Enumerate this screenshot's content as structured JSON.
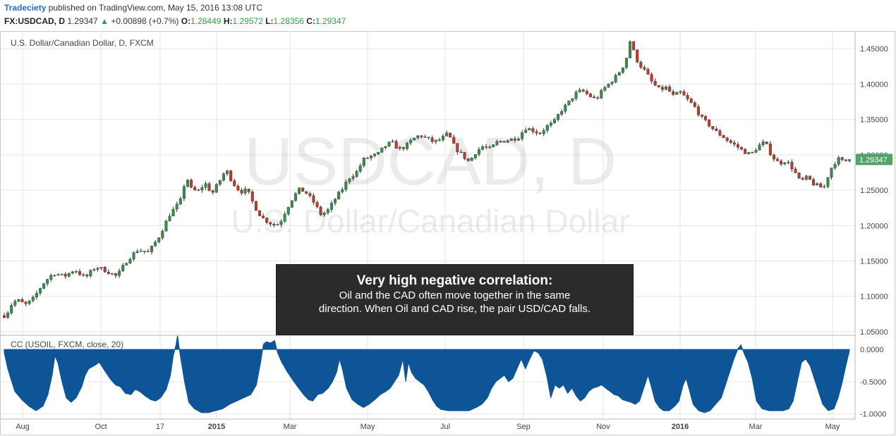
{
  "header": {
    "publisher": "Tradeciety",
    "published_text": "published on TradingView.com, May 15, 2016 13:08 UTC",
    "symbol": "FX:USDCAD, D",
    "last": "1.29347",
    "change_arrow": "▲",
    "change": "+0.00898 (+0.7%)",
    "o_label": "O:",
    "o_value": "1.28449",
    "h_label": "H:",
    "h_value": "1.29572",
    "l_label": "L:",
    "l_value": "1.28356",
    "c_label": "C:",
    "c_value": "1.29347"
  },
  "watermark": {
    "line1": "USDCAD, D",
    "line2": "U.S. Dollar/Canadian Dollar"
  },
  "annotation": {
    "title": "Very high negative correlation:",
    "body_line1": "Oil and the CAD often move together in the same",
    "body_line2": "direction. When Oil and CAD rise, the pair USD/CAD falls."
  },
  "colors": {
    "up": "#3a8e4c",
    "down": "#c0392b",
    "area": "#0e5597",
    "price_tag": "#53a16b",
    "grid": "#e6e6e6"
  },
  "chart_data": [
    {
      "type": "candlestick",
      "title": "U.S. Dollar/Canadian Dollar, D, FXCM",
      "ylim": [
        1.045,
        1.475
      ],
      "y_ticks": [
        "1.45000",
        "1.40000",
        "1.35000",
        "1.30000",
        "1.25000",
        "1.20000",
        "1.15000",
        "1.10000",
        "1.05000"
      ],
      "last_price_label": "1.29347",
      "x_ticks": [
        "Aug",
        "Oct",
        "17",
        "2015",
        "Mar",
        "May",
        "Jul",
        "Sep",
        "Nov",
        "2016",
        "Mar",
        "May"
      ],
      "x_ticks_bold": [
        "2015",
        "2016"
      ],
      "anchors": [
        [
          0,
          1.073
        ],
        [
          5,
          1.078
        ],
        [
          12,
          1.092
        ],
        [
          20,
          1.094
        ],
        [
          30,
          1.088
        ],
        [
          40,
          1.095
        ],
        [
          55,
          1.118
        ],
        [
          70,
          1.133
        ],
        [
          85,
          1.128
        ],
        [
          100,
          1.138
        ],
        [
          115,
          1.126
        ],
        [
          130,
          1.142
        ],
        [
          145,
          1.136
        ],
        [
          160,
          1.128
        ],
        [
          175,
          1.152
        ],
        [
          190,
          1.166
        ],
        [
          205,
          1.162
        ],
        [
          220,
          1.185
        ],
        [
          235,
          1.216
        ],
        [
          245,
          1.228
        ],
        [
          252,
          1.238
        ],
        [
          258,
          1.272
        ],
        [
          265,
          1.252
        ],
        [
          275,
          1.248
        ],
        [
          285,
          1.26
        ],
        [
          295,
          1.245
        ],
        [
          305,
          1.262
        ],
        [
          315,
          1.279
        ],
        [
          325,
          1.26
        ],
        [
          335,
          1.248
        ],
        [
          345,
          1.25
        ],
        [
          355,
          1.228
        ],
        [
          365,
          1.212
        ],
        [
          375,
          1.205
        ],
        [
          385,
          1.2
        ],
        [
          392,
          1.205
        ],
        [
          400,
          1.222
        ],
        [
          410,
          1.24
        ],
        [
          420,
          1.252
        ],
        [
          430,
          1.245
        ],
        [
          440,
          1.232
        ],
        [
          450,
          1.215
        ],
        [
          460,
          1.222
        ],
        [
          470,
          1.238
        ],
        [
          480,
          1.252
        ],
        [
          490,
          1.268
        ],
        [
          500,
          1.275
        ],
        [
          510,
          1.293
        ],
        [
          520,
          1.298
        ],
        [
          530,
          1.3
        ],
        [
          540,
          1.312
        ],
        [
          550,
          1.318
        ],
        [
          560,
          1.308
        ],
        [
          570,
          1.312
        ],
        [
          580,
          1.322
        ],
        [
          590,
          1.328
        ],
        [
          600,
          1.323
        ],
        [
          610,
          1.318
        ],
        [
          620,
          1.322
        ],
        [
          630,
          1.33
        ],
        [
          640,
          1.31
        ],
        [
          650,
          1.3
        ],
        [
          660,
          1.29
        ],
        [
          670,
          1.305
        ],
        [
          680,
          1.312
        ],
        [
          690,
          1.308
        ],
        [
          700,
          1.318
        ],
        [
          710,
          1.32
        ],
        [
          720,
          1.322
        ],
        [
          730,
          1.325
        ],
        [
          740,
          1.338
        ],
        [
          750,
          1.335
        ],
        [
          760,
          1.33
        ],
        [
          770,
          1.34
        ],
        [
          780,
          1.345
        ],
        [
          790,
          1.362
        ],
        [
          800,
          1.372
        ],
        [
          810,
          1.386
        ],
        [
          820,
          1.391
        ],
        [
          830,
          1.384
        ],
        [
          840,
          1.378
        ],
        [
          850,
          1.392
        ],
        [
          860,
          1.402
        ],
        [
          870,
          1.412
        ],
        [
          880,
          1.428
        ],
        [
          885,
          1.442
        ],
        [
          888,
          1.462
        ],
        [
          893,
          1.448
        ],
        [
          900,
          1.43
        ],
        [
          910,
          1.418
        ],
        [
          920,
          1.402
        ],
        [
          930,
          1.392
        ],
        [
          940,
          1.395
        ],
        [
          950,
          1.383
        ],
        [
          960,
          1.388
        ],
        [
          970,
          1.378
        ],
        [
          980,
          1.368
        ],
        [
          990,
          1.352
        ],
        [
          1000,
          1.343
        ],
        [
          1010,
          1.333
        ],
        [
          1020,
          1.326
        ],
        [
          1030,
          1.318
        ],
        [
          1040,
          1.312
        ],
        [
          1050,
          1.305
        ],
        [
          1060,
          1.3
        ],
        [
          1070,
          1.312
        ],
        [
          1080,
          1.318
        ],
        [
          1090,
          1.298
        ],
        [
          1100,
          1.288
        ],
        [
          1110,
          1.292
        ],
        [
          1120,
          1.28
        ],
        [
          1130,
          1.262
        ],
        [
          1140,
          1.268
        ],
        [
          1150,
          1.258
        ],
        [
          1160,
          1.254
        ],
        [
          1165,
          1.255
        ],
        [
          1170,
          1.272
        ],
        [
          1175,
          1.283
        ],
        [
          1180,
          1.29
        ],
        [
          1186,
          1.295
        ],
        [
          1192,
          1.289
        ],
        [
          1197,
          1.2935
        ]
      ]
    },
    {
      "type": "area",
      "title": "CC (USOIL, FXCM, close, 20)",
      "ylim": [
        -1.08,
        0.22
      ],
      "y_ticks": [
        "0.0000",
        "-0.5000",
        "-1.0000"
      ],
      "anchors": [
        [
          0,
          -0.05
        ],
        [
          5,
          -0.3
        ],
        [
          15,
          -0.65
        ],
        [
          25,
          -0.78
        ],
        [
          35,
          -0.88
        ],
        [
          45,
          -0.95
        ],
        [
          55,
          -0.88
        ],
        [
          62,
          -0.7
        ],
        [
          68,
          -0.4
        ],
        [
          72,
          -0.1
        ],
        [
          76,
          -0.2
        ],
        [
          82,
          -0.5
        ],
        [
          88,
          -0.75
        ],
        [
          95,
          -0.82
        ],
        [
          102,
          -0.75
        ],
        [
          110,
          -0.58
        ],
        [
          115,
          -0.4
        ],
        [
          120,
          -0.3
        ],
        [
          128,
          -0.25
        ],
        [
          135,
          -0.2
        ],
        [
          142,
          -0.32
        ],
        [
          150,
          -0.45
        ],
        [
          158,
          -0.55
        ],
        [
          165,
          -0.58
        ],
        [
          172,
          -0.68
        ],
        [
          180,
          -0.7
        ],
        [
          186,
          -0.62
        ],
        [
          192,
          -0.65
        ],
        [
          200,
          -0.72
        ],
        [
          208,
          -0.78
        ],
        [
          215,
          -0.8
        ],
        [
          222,
          -0.75
        ],
        [
          230,
          -0.62
        ],
        [
          236,
          -0.4
        ],
        [
          240,
          -0.1
        ],
        [
          244,
          0.08
        ],
        [
          246,
          0.22
        ],
        [
          250,
          -0.1
        ],
        [
          256,
          -0.5
        ],
        [
          262,
          -0.82
        ],
        [
          270,
          -0.92
        ],
        [
          280,
          -0.98
        ],
        [
          290,
          -0.98
        ],
        [
          300,
          -0.95
        ],
        [
          310,
          -0.92
        ],
        [
          320,
          -0.85
        ],
        [
          330,
          -0.8
        ],
        [
          340,
          -0.75
        ],
        [
          350,
          -0.7
        ],
        [
          358,
          -0.55
        ],
        [
          364,
          -0.2
        ],
        [
          368,
          0.08
        ],
        [
          372,
          0.12
        ],
        [
          378,
          0.1
        ],
        [
          384,
          0.14
        ],
        [
          388,
          -0.05
        ],
        [
          394,
          -0.2
        ],
        [
          402,
          -0.35
        ],
        [
          410,
          -0.48
        ],
        [
          418,
          -0.6
        ],
        [
          425,
          -0.7
        ],
        [
          432,
          -0.78
        ],
        [
          438,
          -0.8
        ],
        [
          445,
          -0.7
        ],
        [
          452,
          -0.68
        ],
        [
          460,
          -0.6
        ],
        [
          466,
          -0.5
        ],
        [
          472,
          -0.35
        ],
        [
          476,
          -0.15
        ],
        [
          480,
          -0.3
        ],
        [
          486,
          -0.6
        ],
        [
          494,
          -0.78
        ],
        [
          502,
          -0.85
        ],
        [
          510,
          -0.9
        ],
        [
          518,
          -0.85
        ],
        [
          526,
          -0.78
        ],
        [
          534,
          -0.7
        ],
        [
          542,
          -0.65
        ],
        [
          548,
          -0.6
        ],
        [
          554,
          -0.5
        ],
        [
          560,
          -0.4
        ],
        [
          566,
          -0.15
        ],
        [
          570,
          -0.5
        ],
        [
          574,
          -0.2
        ],
        [
          578,
          -0.35
        ],
        [
          584,
          -0.45
        ],
        [
          590,
          -0.5
        ],
        [
          596,
          -0.55
        ],
        [
          602,
          -0.65
        ],
        [
          608,
          -0.78
        ],
        [
          614,
          -0.88
        ],
        [
          620,
          -0.93
        ],
        [
          630,
          -0.95
        ],
        [
          640,
          -0.95
        ],
        [
          650,
          -0.95
        ],
        [
          660,
          -0.95
        ],
        [
          670,
          -0.9
        ],
        [
          678,
          -0.85
        ],
        [
          686,
          -0.75
        ],
        [
          692,
          -0.6
        ],
        [
          698,
          -0.5
        ],
        [
          704,
          -0.45
        ],
        [
          710,
          -0.4
        ],
        [
          716,
          -0.5
        ],
        [
          722,
          -0.45
        ],
        [
          728,
          -0.3
        ],
        [
          734,
          -0.15
        ],
        [
          740,
          -0.3
        ],
        [
          746,
          -0.15
        ],
        [
          752,
          -0.02
        ],
        [
          758,
          -0.05
        ],
        [
          764,
          -0.15
        ],
        [
          770,
          -0.4
        ],
        [
          776,
          -0.75
        ],
        [
          782,
          -0.55
        ],
        [
          788,
          -0.6
        ],
        [
          794,
          -0.55
        ],
        [
          800,
          -0.68
        ],
        [
          806,
          -0.6
        ],
        [
          812,
          -0.72
        ],
        [
          818,
          -0.8
        ],
        [
          824,
          -0.75
        ],
        [
          830,
          -0.65
        ],
        [
          836,
          -0.6
        ],
        [
          842,
          -0.58
        ],
        [
          848,
          -0.55
        ],
        [
          854,
          -0.6
        ],
        [
          860,
          -0.65
        ],
        [
          866,
          -0.7
        ],
        [
          872,
          -0.72
        ],
        [
          878,
          -0.78
        ],
        [
          884,
          -0.8
        ],
        [
          890,
          -0.82
        ],
        [
          896,
          -0.85
        ],
        [
          902,
          -0.8
        ],
        [
          908,
          -0.6
        ],
        [
          914,
          -0.4
        ],
        [
          918,
          -0.55
        ],
        [
          924,
          -0.8
        ],
        [
          930,
          -0.9
        ],
        [
          936,
          -0.95
        ],
        [
          944,
          -0.95
        ],
        [
          952,
          -0.88
        ],
        [
          958,
          -0.8
        ],
        [
          964,
          -0.55
        ],
        [
          968,
          -0.45
        ],
        [
          972,
          -0.6
        ],
        [
          978,
          -0.85
        ],
        [
          986,
          -0.95
        ],
        [
          994,
          -0.98
        ],
        [
          1002,
          -0.95
        ],
        [
          1010,
          -0.85
        ],
        [
          1018,
          -0.75
        ],
        [
          1024,
          -0.55
        ],
        [
          1030,
          -0.35
        ],
        [
          1036,
          -0.15
        ],
        [
          1042,
          0.02
        ],
        [
          1046,
          0.07
        ],
        [
          1050,
          -0.05
        ],
        [
          1056,
          -0.2
        ],
        [
          1062,
          -0.45
        ],
        [
          1068,
          -0.8
        ],
        [
          1076,
          -0.92
        ],
        [
          1086,
          -0.95
        ],
        [
          1096,
          -0.95
        ],
        [
          1106,
          -0.95
        ],
        [
          1114,
          -0.92
        ],
        [
          1120,
          -0.8
        ],
        [
          1126,
          -0.5
        ],
        [
          1132,
          -0.2
        ],
        [
          1138,
          -0.15
        ],
        [
          1144,
          -0.25
        ],
        [
          1150,
          -0.45
        ],
        [
          1156,
          -0.65
        ],
        [
          1162,
          -0.85
        ],
        [
          1170,
          -0.95
        ],
        [
          1178,
          -0.92
        ],
        [
          1184,
          -0.75
        ],
        [
          1190,
          -0.5
        ],
        [
          1195,
          -0.25
        ],
        [
          1200,
          -0.02
        ]
      ]
    }
  ]
}
